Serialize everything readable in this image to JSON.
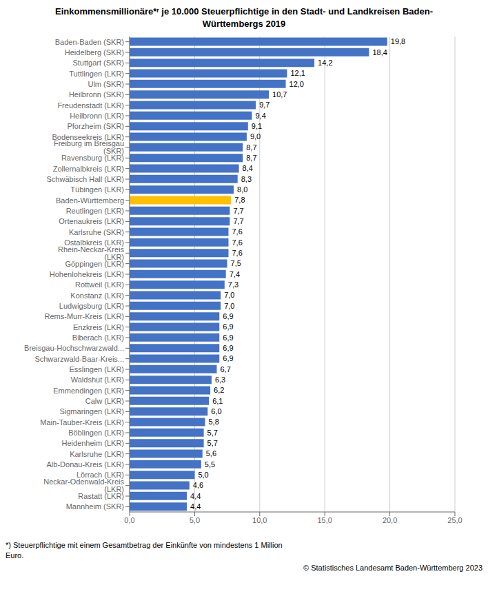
{
  "chart_data": {
    "type": "bar",
    "orientation": "horizontal",
    "title": "Einkommensmillionäre*ʳ je 10.000 Steuerpflichtige in den Stadt- und Landkreisen Baden-\nWürttembergs 2019",
    "annotations": [
      "*) Steuerpflichtige mit einem Gesamtbetrag der Einkünfte von mindestens 1 Million\nEuro.",
      "© Statistisches Landesamt Baden-Württemberg 2023"
    ],
    "categories": [
      "Baden-Baden (SKR)",
      "Heidelberg (SKR)",
      "Stuttgart (SKR)",
      "Tuttlingen (LKR)",
      "Ulm (SKR)",
      "Heilbronn (SKR)",
      "Freudenstadt (LKR)",
      "Heilbronn (LKR)",
      "Pforzheim (SKR)",
      "Bodenseekreis (LKR)",
      "Freiburg im Breisgau (SKR)",
      "Ravensburg (LKR)",
      "Zollernalbkreis (LKR)",
      "Schwäbisch Hall (LKR)",
      "Tübingen (LKR)",
      "Baden-Württemberg",
      "Reutlingen (LKR)",
      "Ortenaukreis (LKR)",
      "Karlsruhe (SKR)",
      "Ostalbkreis (LKR)",
      "Rhein-Neckar-Kreis (LKR)",
      "Göppingen (LKR)",
      "Hohenlohekreis (LKR)",
      "Rottweil (LKR)",
      "Konstanz (LKR)",
      "Ludwigsburg (LKR)",
      "Rems-Murr-Kreis (LKR)",
      "Enzkreis (LKR)",
      "Biberach (LKR)",
      "Breisgau-Hochschwarzwald...",
      "Schwarzwald-Baar-Kreis...",
      "Esslingen (LKR)",
      "Waldshut (LKR)",
      "Emmendingen (LKR)",
      "Calw (LKR)",
      "Sigmaringen (LKR)",
      "Main-Tauber-Kreis (LKR)",
      "Böblingen (LKR)",
      "Heidenheim (LKR)",
      "Karlsruhe (LKR)",
      "Alb-Donau-Kreis (LKR)",
      "Lörrach (LKR)",
      "Neckar-Odenwald-Kreis (LKR)",
      "Rastatt (LKR)",
      "Mannheim (SKR)"
    ],
    "values": [
      19.8,
      18.4,
      14.2,
      12.1,
      12.0,
      10.7,
      9.7,
      9.4,
      9.1,
      9.0,
      8.7,
      8.7,
      8.4,
      8.3,
      8.0,
      7.8,
      7.7,
      7.7,
      7.6,
      7.6,
      7.6,
      7.5,
      7.4,
      7.3,
      7.0,
      7.0,
      6.9,
      6.9,
      6.9,
      6.9,
      6.9,
      6.7,
      6.3,
      6.2,
      6.1,
      6.0,
      5.8,
      5.7,
      5.7,
      5.6,
      5.5,
      5.0,
      4.6,
      4.4,
      4.4
    ],
    "value_labels": [
      "19,8",
      "18,4",
      "14,2",
      "12,1",
      "12,0",
      "10,7",
      "9,7",
      "9,4",
      "9,1",
      "9,0",
      "8,7",
      "8,7",
      "8,4",
      "8,3",
      "8,0",
      "7,8",
      "7,7",
      "7,7",
      "7,6",
      "7,6",
      "7,6",
      "7,5",
      "7,4",
      "7,3",
      "7,0",
      "7,0",
      "6,9",
      "6,9",
      "6,9",
      "6,9",
      "6,9",
      "6,7",
      "6,3",
      "6,2",
      "6,1",
      "6,0",
      "5,8",
      "5,7",
      "5,7",
      "5,6",
      "5,5",
      "5,0",
      "4,6",
      "4,4",
      "4,4"
    ],
    "data_labels": true,
    "colors": [
      "#4472C4",
      "#4472C4",
      "#4472C4",
      "#4472C4",
      "#4472C4",
      "#4472C4",
      "#4472C4",
      "#4472C4",
      "#4472C4",
      "#4472C4",
      "#4472C4",
      "#4472C4",
      "#4472C4",
      "#4472C4",
      "#4472C4",
      "#FFC000",
      "#4472C4",
      "#4472C4",
      "#4472C4",
      "#4472C4",
      "#4472C4",
      "#4472C4",
      "#4472C4",
      "#4472C4",
      "#4472C4",
      "#4472C4",
      "#4472C4",
      "#4472C4",
      "#4472C4",
      "#4472C4",
      "#4472C4",
      "#4472C4",
      "#4472C4",
      "#4472C4",
      "#4472C4",
      "#4472C4",
      "#4472C4",
      "#4472C4",
      "#4472C4",
      "#4472C4",
      "#4472C4",
      "#4472C4",
      "#4472C4",
      "#4472C4",
      "#4472C4"
    ],
    "xlim": [
      0,
      25
    ],
    "xticks": [
      {
        "value": 0,
        "label": "0,0"
      },
      {
        "value": 5,
        "label": "5,0"
      },
      {
        "value": 10,
        "label": "10,0"
      },
      {
        "value": 15,
        "label": "15,0"
      },
      {
        "value": 20,
        "label": "20,0"
      },
      {
        "value": 25,
        "label": "25,0"
      }
    ],
    "grid": true
  }
}
